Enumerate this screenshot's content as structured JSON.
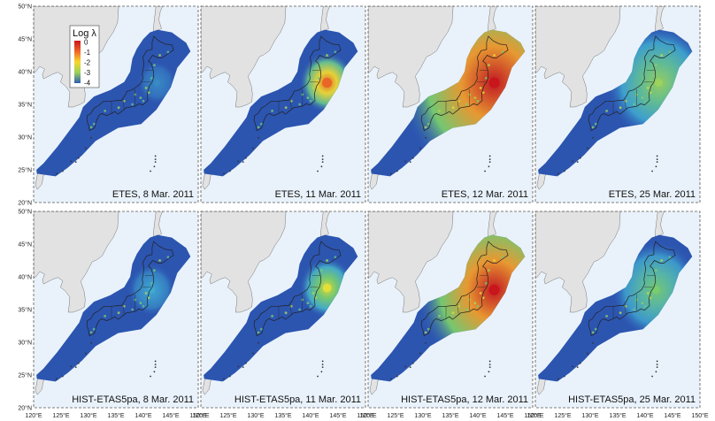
{
  "figure": {
    "legend": {
      "title": "Log λ",
      "ticks": [
        "0",
        "-1",
        "-2",
        "-3",
        "-4"
      ],
      "colors": [
        "#c8151b",
        "#f0642a",
        "#f6d82a",
        "#9bd25a",
        "#2e5bb5"
      ]
    },
    "lat_ticks": [
      "50°N",
      "45°N",
      "40°N",
      "35°N",
      "30°N",
      "25°N",
      "20°N"
    ],
    "lon_ticks": [
      "120°E",
      "125°E",
      "130°E",
      "135°E",
      "140°E",
      "145°E",
      "150°E"
    ],
    "colors": {
      "land": "#e2e2e2",
      "ocean": "#e9f2fb",
      "region": "#2c55b0",
      "coast": "#222222"
    },
    "panels": [
      {
        "label": "ETES, 8 Mar. 2011",
        "row": 0,
        "col": 0,
        "activity": 0.1,
        "hotspot": [
          142.5,
          38.3
        ],
        "hotspot_level": 0.15
      },
      {
        "label": "ETES, 11 Mar. 2011",
        "row": 0,
        "col": 1,
        "activity": 0.2,
        "hotspot": [
          143.0,
          38.3
        ],
        "hotspot_level": 0.85
      },
      {
        "label": "ETES, 12 Mar. 2011",
        "row": 0,
        "col": 2,
        "activity": 1.0,
        "hotspot": [
          143.0,
          38.3
        ],
        "hotspot_level": 1.0
      },
      {
        "label": "ETES, 25 Mar. 2011",
        "row": 0,
        "col": 3,
        "activity": 0.5,
        "hotspot": [
          142.5,
          38.3
        ],
        "hotspot_level": 0.5
      },
      {
        "label": "HIST-ETAS5pa, 8 Mar. 2011",
        "row": 1,
        "col": 0,
        "activity": 0.15,
        "hotspot": [
          141.5,
          38.0
        ],
        "hotspot_level": 0.25
      },
      {
        "label": "HIST-ETAS5pa, 11 Mar. 2011",
        "row": 1,
        "col": 1,
        "activity": 0.2,
        "hotspot": [
          143.0,
          38.3
        ],
        "hotspot_level": 0.6
      },
      {
        "label": "HIST-ETAS5pa, 12 Mar. 2011",
        "row": 1,
        "col": 2,
        "activity": 0.8,
        "hotspot": [
          143.0,
          38.0
        ],
        "hotspot_level": 1.0
      },
      {
        "label": "HIST-ETAS5pa, 25 Mar. 2011",
        "row": 1,
        "col": 3,
        "activity": 0.4,
        "hotspot": [
          142.0,
          38.0
        ],
        "hotspot_level": 0.45
      }
    ]
  }
}
